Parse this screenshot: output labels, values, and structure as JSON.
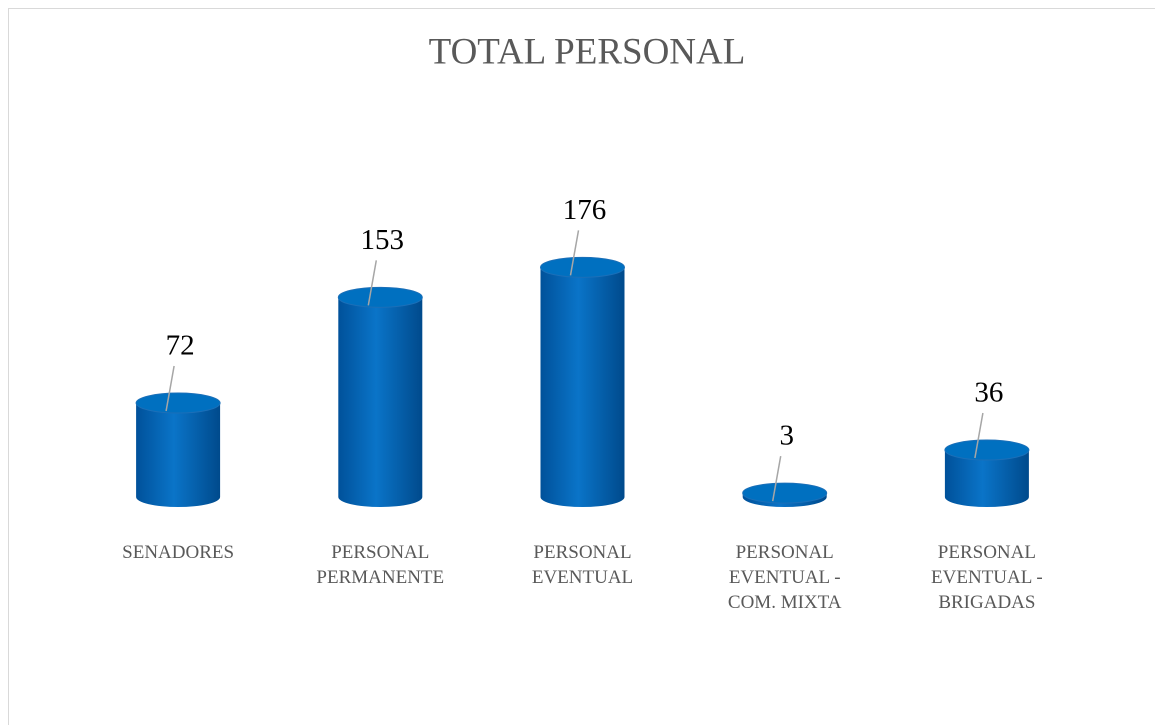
{
  "chart_data": {
    "type": "bar",
    "title": "TOTAL PERSONAL",
    "categories": [
      "SENADORES",
      "PERSONAL PERMANENTE",
      "PERSONAL EVENTUAL",
      "PERSONAL EVENTUAL - COM. MIXTA",
      "PERSONAL EVENTUAL - BRIGADAS"
    ],
    "values": [
      72,
      153,
      176,
      3,
      36
    ],
    "color": "#0070c0",
    "ylim": [
      0,
      200
    ]
  }
}
